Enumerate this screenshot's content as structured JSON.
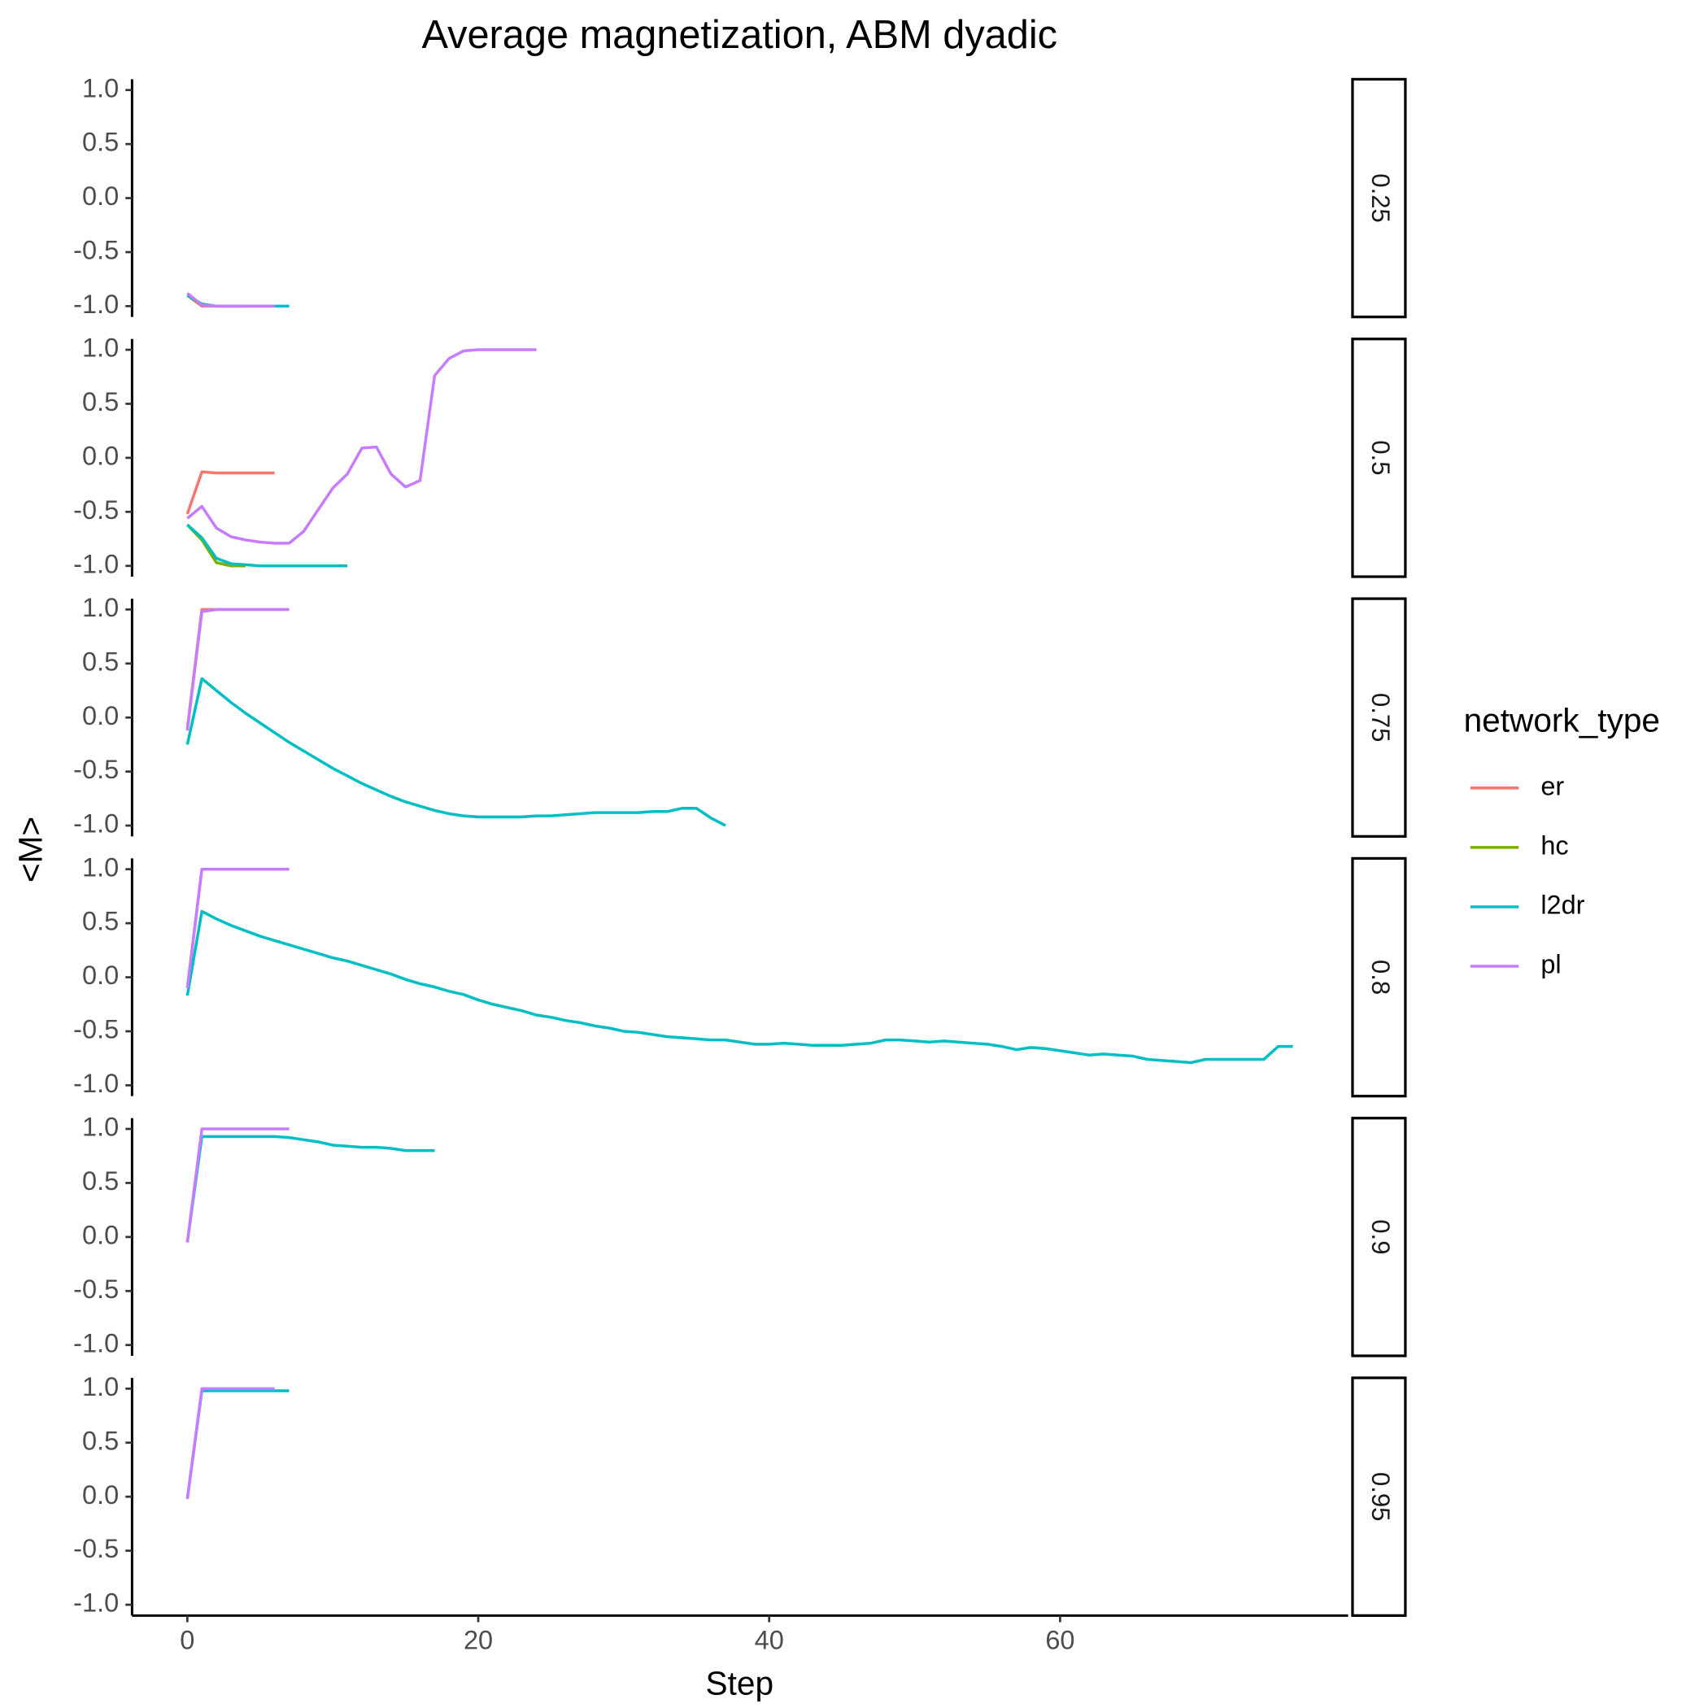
{
  "chart_data": {
    "type": "line",
    "title": "Average magnetization, ABM dyadic",
    "x_label": "Step",
    "y_label": "<M>",
    "legend_title": "network_type",
    "xlim": [
      -3.8,
      79.8
    ],
    "xticks": [
      0,
      20,
      40,
      60
    ],
    "ylim": [
      -1.1,
      1.1
    ],
    "yticks": [
      {
        "value": 1.0,
        "label": "1.0"
      },
      {
        "value": 0.5,
        "label": "0.5"
      },
      {
        "value": 0,
        "label": "0.0"
      },
      {
        "value": -0.5,
        "label": "-0.5"
      },
      {
        "value": -1.0,
        "label": "-1.0"
      }
    ],
    "facets": [
      {
        "label": "0.25",
        "series": [
          {
            "name": "er",
            "color": "#f8766d",
            "x": [
              0,
              1,
              2,
              3,
              4,
              5,
              6
            ],
            "values": [
              -0.9,
              -1.0,
              -1.0,
              -1.0,
              -1.0,
              -1.0,
              -1.0
            ]
          },
          {
            "name": "hc",
            "color": "#7cae00",
            "x": [
              0,
              1,
              2,
              3,
              4
            ],
            "values": [
              -0.9,
              -0.99,
              -1.0,
              -1.0,
              -1.0
            ]
          },
          {
            "name": "l2dr",
            "color": "#00bfc4",
            "x": [
              0,
              1,
              2,
              3,
              4,
              5,
              6,
              7
            ],
            "values": [
              -0.9,
              -0.98,
              -1.0,
              -1.0,
              -1.0,
              -1.0,
              -1.0,
              -1.0
            ]
          },
          {
            "name": "pl",
            "color": "#c77cff",
            "x": [
              0,
              1,
              2,
              3,
              4,
              5,
              6
            ],
            "values": [
              -0.88,
              -0.99,
              -1.0,
              -1.0,
              -1.0,
              -1.0,
              -1.0
            ]
          }
        ]
      },
      {
        "label": "0.5",
        "series": [
          {
            "name": "er",
            "color": "#f8766d",
            "x": [
              0,
              1,
              2,
              3,
              4,
              5,
              6
            ],
            "values": [
              -0.52,
              -0.13,
              -0.14,
              -0.14,
              -0.14,
              -0.14,
              -0.14
            ]
          },
          {
            "name": "hc",
            "color": "#7cae00",
            "x": [
              0,
              1,
              2,
              3,
              4
            ],
            "values": [
              -0.62,
              -0.76,
              -0.97,
              -1.0,
              -1.0
            ]
          },
          {
            "name": "l2dr",
            "color": "#00bfc4",
            "x": [
              0,
              1,
              2,
              3,
              4,
              5,
              6,
              7,
              8,
              9,
              10,
              11
            ],
            "values": [
              -0.62,
              -0.74,
              -0.93,
              -0.98,
              -0.99,
              -1.0,
              -1.0,
              -1.0,
              -1.0,
              -1.0,
              -1.0,
              -1.0
            ]
          },
          {
            "name": "pl",
            "color": "#c77cff",
            "x": [
              0,
              1,
              2,
              3,
              4,
              5,
              6,
              7,
              8,
              9,
              10,
              11,
              12,
              13,
              14,
              15,
              16,
              17,
              18,
              19,
              20,
              21,
              22,
              23,
              24
            ],
            "values": [
              -0.56,
              -0.45,
              -0.65,
              -0.73,
              -0.76,
              -0.78,
              -0.79,
              -0.79,
              -0.68,
              -0.48,
              -0.28,
              -0.15,
              0.09,
              0.1,
              -0.15,
              -0.27,
              -0.21,
              0.76,
              0.92,
              0.99,
              1.0,
              1.0,
              1.0,
              1.0,
              1.0
            ]
          }
        ]
      },
      {
        "label": "0.75",
        "series": [
          {
            "name": "er",
            "color": "#f8766d",
            "x": [
              0,
              1,
              2,
              3,
              4,
              5,
              6,
              7
            ],
            "values": [
              -0.1,
              1.0,
              1.0,
              1.0,
              1.0,
              1.0,
              1.0,
              1.0
            ]
          },
          {
            "name": "l2dr",
            "color": "#00bfc4",
            "x": [
              0,
              1,
              2,
              3,
              4,
              5,
              6,
              7,
              8,
              9,
              10,
              11,
              12,
              13,
              14,
              15,
              16,
              17,
              18,
              19,
              20,
              21,
              22,
              23,
              24,
              25,
              26,
              27,
              28,
              29,
              30,
              31,
              32,
              33,
              34,
              35,
              36,
              37
            ],
            "values": [
              -0.25,
              0.36,
              0.25,
              0.14,
              0.04,
              -0.05,
              -0.14,
              -0.23,
              -0.31,
              -0.39,
              -0.47,
              -0.54,
              -0.61,
              -0.67,
              -0.73,
              -0.78,
              -0.82,
              -0.86,
              -0.89,
              -0.91,
              -0.92,
              -0.92,
              -0.92,
              -0.92,
              -0.91,
              -0.91,
              -0.9,
              -0.89,
              -0.88,
              -0.88,
              -0.88,
              -0.88,
              -0.87,
              -0.87,
              -0.84,
              -0.84,
              -0.93,
              -1.0
            ]
          },
          {
            "name": "pl",
            "color": "#c77cff",
            "x": [
              0,
              1,
              2,
              3,
              4,
              5,
              6,
              7
            ],
            "values": [
              -0.12,
              0.98,
              1.0,
              1.0,
              1.0,
              1.0,
              1.0,
              1.0
            ]
          }
        ]
      },
      {
        "label": "0.8",
        "series": [
          {
            "name": "er",
            "color": "#f8766d",
            "x": [
              0,
              1,
              2,
              3,
              4,
              5,
              6,
              7
            ],
            "values": [
              -0.1,
              1.0,
              1.0,
              1.0,
              1.0,
              1.0,
              1.0,
              1.0
            ]
          },
          {
            "name": "l2dr",
            "color": "#00bfc4",
            "x": [
              0,
              1,
              2,
              3,
              4,
              5,
              6,
              7,
              8,
              9,
              10,
              11,
              12,
              13,
              14,
              15,
              16,
              17,
              18,
              19,
              20,
              21,
              22,
              23,
              24,
              25,
              26,
              27,
              28,
              29,
              30,
              31,
              32,
              33,
              34,
              35,
              36,
              37,
              38,
              39,
              40,
              41,
              42,
              43,
              44,
              45,
              46,
              47,
              48,
              49,
              50,
              51,
              52,
              53,
              54,
              55,
              56,
              57,
              58,
              59,
              60,
              61,
              62,
              63,
              64,
              65,
              66,
              67,
              68,
              69,
              70,
              71,
              72,
              73,
              74,
              75,
              76
            ],
            "values": [
              -0.17,
              0.61,
              0.54,
              0.48,
              0.43,
              0.38,
              0.34,
              0.3,
              0.26,
              0.22,
              0.18,
              0.15,
              0.11,
              0.07,
              0.03,
              -0.02,
              -0.06,
              -0.09,
              -0.13,
              -0.16,
              -0.21,
              -0.25,
              -0.28,
              -0.31,
              -0.35,
              -0.37,
              -0.4,
              -0.42,
              -0.45,
              -0.47,
              -0.5,
              -0.51,
              -0.53,
              -0.55,
              -0.56,
              -0.57,
              -0.58,
              -0.58,
              -0.6,
              -0.62,
              -0.62,
              -0.61,
              -0.62,
              -0.63,
              -0.63,
              -0.63,
              -0.62,
              -0.61,
              -0.58,
              -0.58,
              -0.59,
              -0.6,
              -0.59,
              -0.6,
              -0.61,
              -0.62,
              -0.64,
              -0.67,
              -0.65,
              -0.66,
              -0.68,
              -0.7,
              -0.72,
              -0.71,
              -0.72,
              -0.73,
              -0.76,
              -0.77,
              -0.78,
              -0.79,
              -0.76,
              -0.76,
              -0.76,
              -0.76,
              -0.76,
              -0.64,
              -0.64
            ]
          },
          {
            "name": "pl",
            "color": "#c77cff",
            "x": [
              0,
              1,
              2,
              3,
              4,
              5,
              6,
              7
            ],
            "values": [
              -0.1,
              1.0,
              1.0,
              1.0,
              1.0,
              1.0,
              1.0,
              1.0
            ]
          }
        ]
      },
      {
        "label": "0.9",
        "series": [
          {
            "name": "l2dr",
            "color": "#00bfc4",
            "x": [
              0,
              1,
              2,
              3,
              4,
              5,
              6,
              7,
              8,
              9,
              10,
              11,
              12,
              13,
              14,
              15,
              16,
              17
            ],
            "values": [
              -0.05,
              0.93,
              0.93,
              0.93,
              0.93,
              0.93,
              0.93,
              0.92,
              0.9,
              0.88,
              0.85,
              0.84,
              0.83,
              0.83,
              0.82,
              0.8,
              0.8,
              0.8
            ]
          },
          {
            "name": "pl",
            "color": "#c77cff",
            "x": [
              0,
              1,
              2,
              3,
              4,
              5,
              6,
              7
            ],
            "values": [
              -0.05,
              1.0,
              1.0,
              1.0,
              1.0,
              1.0,
              1.0,
              1.0
            ]
          }
        ]
      },
      {
        "label": "0.95",
        "series": [
          {
            "name": "l2dr",
            "color": "#00bfc4",
            "x": [
              0,
              1,
              2,
              3,
              4,
              5,
              6,
              7
            ],
            "values": [
              -0.02,
              0.98,
              0.98,
              0.98,
              0.98,
              0.98,
              0.98,
              0.98
            ]
          },
          {
            "name": "pl",
            "color": "#c77cff",
            "x": [
              0,
              1,
              2,
              3,
              4,
              5,
              6
            ],
            "values": [
              -0.02,
              1.0,
              1.0,
              1.0,
              1.0,
              1.0,
              1.0
            ]
          }
        ]
      }
    ]
  }
}
